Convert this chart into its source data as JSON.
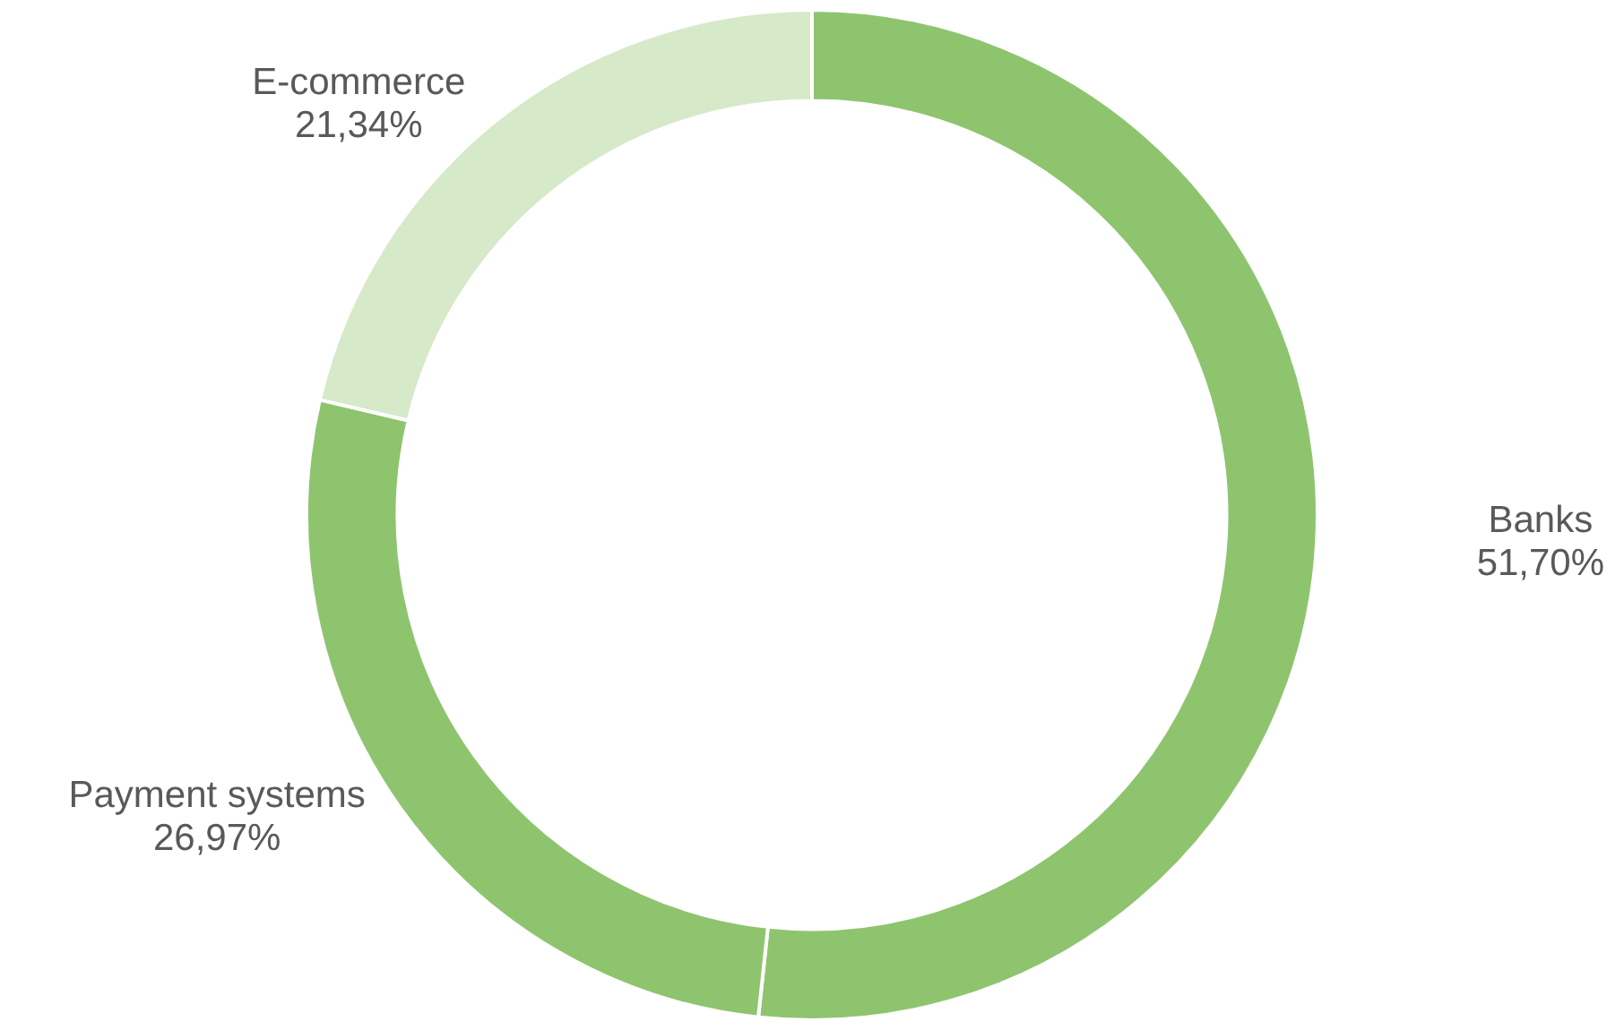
{
  "chart_data": {
    "type": "donut",
    "categories": [
      "Banks",
      "Payment systems",
      "E-commerce"
    ],
    "values": [
      51.7,
      26.97,
      21.34
    ],
    "colors": [
      "#8fc46f",
      "#8fc46f",
      "#d6e9c9"
    ],
    "value_labels": [
      "51,70%",
      "26,97%",
      "21,34%"
    ],
    "legend": false
  }
}
